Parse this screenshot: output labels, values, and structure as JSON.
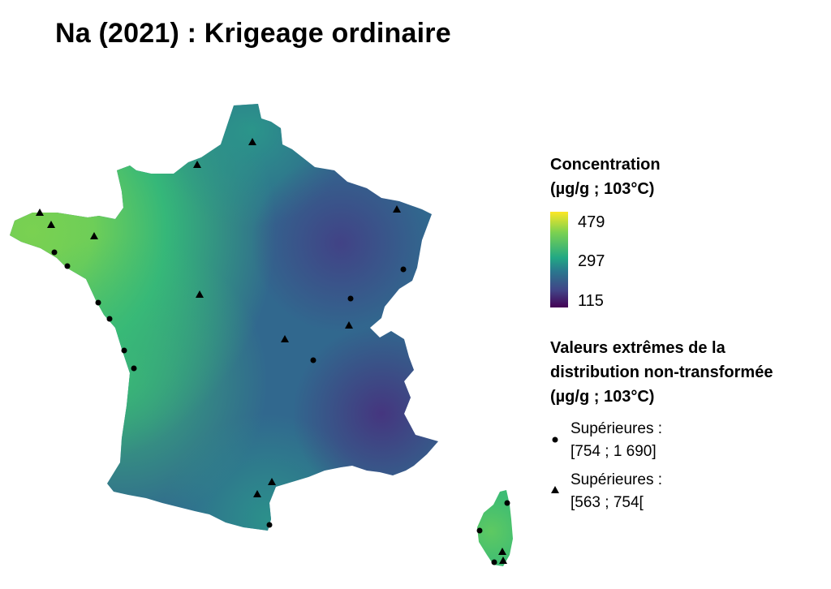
{
  "title": "Na (2021) : Krigeage ordinaire",
  "legend": {
    "title_line1": "Concentration",
    "title_line2": "(µg/g ; 103°C)",
    "ticks": {
      "max": "479",
      "mid": "297",
      "min": "115"
    },
    "colors": [
      "#fde725",
      "#7ad151",
      "#22a884",
      "#2a788e",
      "#414487",
      "#440154"
    ]
  },
  "extremes": {
    "title_line1": "Valeurs extrêmes de la",
    "title_line2": "distribution non-transformée",
    "title_line3": "(µg/g ; 103°C)",
    "circle_label_line1": "Supérieures :",
    "circle_label_line2": "[754 ; 1 690]",
    "triangle_label_line1": "Supérieures :",
    "triangle_label_line2": "[563 ; 754["
  },
  "map": {
    "region": "France",
    "marker_types": [
      "circle-marker",
      "triangle-marker"
    ],
    "circle_marker_count": 13,
    "triangle_marker_count": 13
  }
}
